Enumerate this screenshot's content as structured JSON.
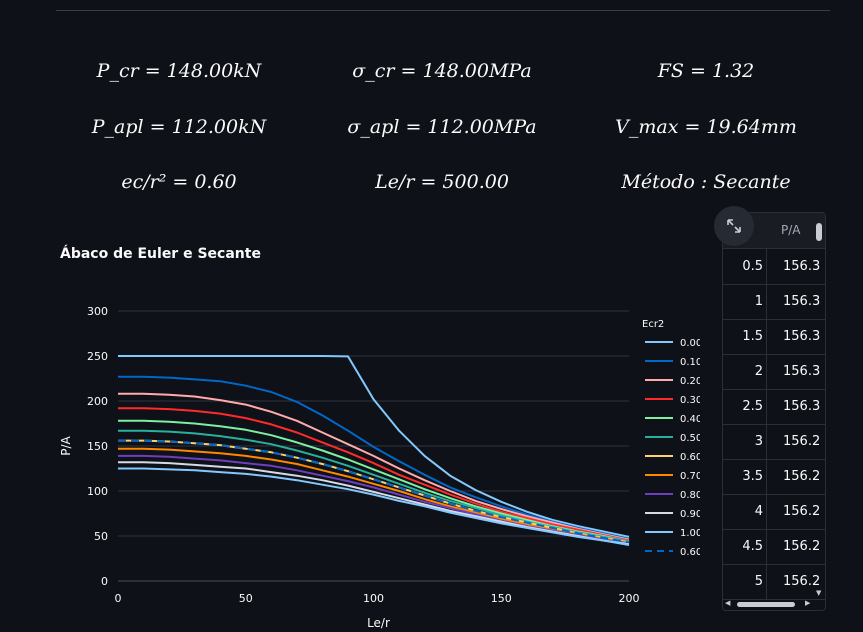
{
  "metrics": [
    {
      "label": "P_cr",
      "value": "P_cr = 148.00kN"
    },
    {
      "label": "σ_cr",
      "value": "σ_cr = 148.00MPa"
    },
    {
      "label": "FS",
      "value": "FS = 1.32"
    },
    {
      "label": "P_apl",
      "value": "P_apl = 112.00kN"
    },
    {
      "label": "σ_apl",
      "value": "σ_apl = 112.00MPa"
    },
    {
      "label": "V_max",
      "value": "V_max = 19.64mm"
    },
    {
      "label": "ec/r2",
      "value": "ec/r² = 0.60"
    },
    {
      "label": "Le/r",
      "value": "Le/r = 500.00"
    },
    {
      "label": "Método",
      "value": "Método : Secante"
    }
  ],
  "chart_title": "Ábaco de Euler e Secante",
  "chart_data": {
    "type": "line",
    "title": "Ábaco de Euler e Secante",
    "xlabel": "Le/r",
    "ylabel": "P/A",
    "xlim": [
      0,
      200
    ],
    "ylim": [
      0,
      300
    ],
    "xticks": [
      0,
      50,
      100,
      150,
      200
    ],
    "yticks": [
      0,
      50,
      100,
      150,
      200,
      250,
      300
    ],
    "legend_title": "Ecr2",
    "legend_position": "right",
    "grid": true,
    "x": [
      0,
      10,
      20,
      30,
      40,
      50,
      60,
      70,
      80,
      90,
      100,
      110,
      120,
      130,
      140,
      150,
      160,
      170,
      180,
      190,
      200
    ],
    "series": [
      {
        "name": "0.00",
        "color": "#83c9ff",
        "dash": false,
        "values": [
          250,
          250,
          250,
          250,
          250,
          250,
          250,
          250,
          250,
          249.5,
          202,
          167,
          139,
          117,
          101,
          88,
          77,
          68,
          61,
          55,
          49
        ]
      },
      {
        "name": "0.10",
        "color": "#0068c9",
        "dash": false,
        "values": [
          227,
          227,
          226,
          224,
          222,
          217,
          210,
          199,
          184,
          167,
          149,
          133,
          118,
          104,
          93,
          83,
          74,
          66,
          59,
          53,
          47
        ]
      },
      {
        "name": "0.20",
        "color": "#ffabab",
        "dash": false,
        "values": [
          208,
          208,
          207,
          205,
          201,
          196,
          188,
          178,
          165,
          152,
          139,
          125,
          112,
          100,
          89,
          80,
          72,
          65,
          58,
          52,
          46
        ]
      },
      {
        "name": "0.30",
        "color": "#ff2b2b",
        "dash": false,
        "values": [
          192,
          192,
          191,
          189,
          186,
          181,
          174,
          165,
          154,
          143,
          131,
          118,
          107,
          96,
          86,
          77,
          70,
          63,
          57,
          51,
          45
        ]
      },
      {
        "name": "0.40",
        "color": "#7defa1",
        "dash": false,
        "values": [
          178,
          178,
          177,
          175,
          172,
          168,
          162,
          154,
          145,
          135,
          124,
          113,
          102,
          92,
          83,
          75,
          68,
          61,
          55,
          50,
          44
        ]
      },
      {
        "name": "0.50",
        "color": "#29b09d",
        "dash": false,
        "values": [
          167,
          167,
          166,
          164,
          161,
          157,
          152,
          145,
          137,
          128,
          118,
          108,
          98,
          89,
          81,
          73,
          66,
          60,
          54,
          49,
          44
        ]
      },
      {
        "name": "0.60",
        "color": "#ffd16a",
        "dash": false,
        "values": [
          156,
          156,
          155,
          153,
          151,
          147,
          143,
          137,
          130,
          122,
          113,
          104,
          95,
          86,
          78,
          71,
          65,
          59,
          53,
          48,
          43
        ]
      },
      {
        "name": "0.70",
        "color": "#ff8700",
        "dash": false,
        "values": [
          147,
          147,
          146,
          144,
          142,
          139,
          135,
          130,
          123,
          116,
          108,
          100,
          91,
          83,
          76,
          69,
          63,
          57,
          52,
          47,
          42
        ]
      },
      {
        "name": "0.80",
        "color": "#6d3fc0",
        "dash": false,
        "values": [
          139,
          139,
          138,
          136,
          134,
          131,
          128,
          123,
          117,
          111,
          104,
          96,
          88,
          81,
          74,
          67,
          61,
          56,
          51,
          46,
          42
        ]
      },
      {
        "name": "0.90",
        "color": "#d5dae5",
        "dash": false,
        "values": [
          132,
          132,
          131,
          129,
          127,
          125,
          121,
          117,
          112,
          106,
          99,
          92,
          85,
          78,
          72,
          66,
          60,
          55,
          50,
          45,
          41
        ]
      },
      {
        "name": "1.00",
        "color": "#83c9ff",
        "dash": false,
        "values": [
          125,
          125,
          124,
          123,
          121,
          119,
          116,
          112,
          107,
          102,
          96,
          89,
          83,
          76,
          70,
          64,
          59,
          54,
          49,
          45,
          40
        ]
      },
      {
        "name": "0.60",
        "color": "#0068c9",
        "dash": true,
        "values": [
          156,
          156,
          155,
          153,
          151,
          147,
          143,
          137,
          130,
          122,
          113,
          104,
          95,
          86,
          78,
          71,
          65,
          59,
          53,
          48,
          43
        ]
      }
    ]
  },
  "table": {
    "columns": [
      "",
      "P/A"
    ],
    "rows": [
      [
        "0.5",
        "156.3"
      ],
      [
        "1",
        "156.3"
      ],
      [
        "1.5",
        "156.3"
      ],
      [
        "2",
        "156.3"
      ],
      [
        "2.5",
        "156.3"
      ],
      [
        "3",
        "156.2"
      ],
      [
        "3.5",
        "156.2"
      ],
      [
        "4",
        "156.2"
      ],
      [
        "4.5",
        "156.2"
      ],
      [
        "5",
        "156.2"
      ]
    ]
  },
  "icons": {
    "expand": "expand-icon"
  }
}
